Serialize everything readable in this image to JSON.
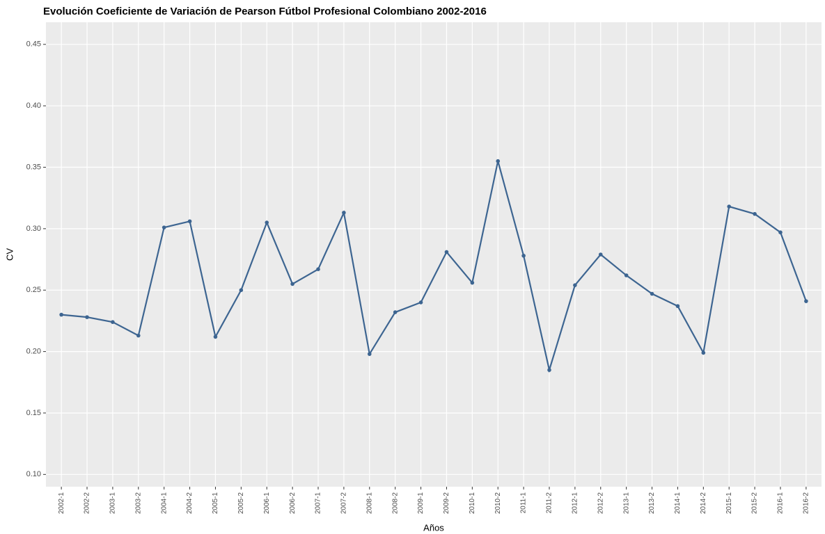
{
  "chart_data": {
    "type": "line",
    "title": "Evolución Coeficiente de Variación de Pearson Fútbol Profesional Colombiano 2002-2016",
    "x_label": "Años",
    "y_label": "CV",
    "categories": [
      "2002-1",
      "2002-2",
      "2003-1",
      "2003-2",
      "2004-1",
      "2004-2",
      "2005-1",
      "2005-2",
      "2006-1",
      "2006-2",
      "2007-1",
      "2007-2",
      "2008-1",
      "2008-2",
      "2009-1",
      "2009-2",
      "2010-1",
      "2010-2",
      "2011-1",
      "2011-2",
      "2012-1",
      "2012-2",
      "2013-1",
      "2013-2",
      "2014-1",
      "2014-2",
      "2015-1",
      "2015-2",
      "2016-1",
      "2016-2"
    ],
    "series": [
      {
        "name": "CV",
        "color": "#3d6591",
        "values": [
          0.23,
          0.228,
          0.224,
          0.213,
          0.301,
          0.306,
          0.212,
          0.25,
          0.305,
          0.255,
          0.267,
          0.313,
          0.198,
          0.232,
          0.24,
          0.281,
          0.256,
          0.355,
          0.278,
          0.185,
          0.254,
          0.279,
          0.262,
          0.247,
          0.237,
          0.199,
          0.318,
          0.312,
          0.297,
          0.241
        ]
      }
    ],
    "ylim": [
      0.09,
      0.468
    ],
    "yticks": [
      {
        "value": 0.1,
        "label": "0.10"
      },
      {
        "value": 0.15,
        "label": "0.15"
      },
      {
        "value": 0.2,
        "label": "0.20"
      },
      {
        "value": 0.25,
        "label": "0.25"
      },
      {
        "value": 0.3,
        "label": "0.30"
      },
      {
        "value": 0.35,
        "label": "0.35"
      },
      {
        "value": 0.4,
        "label": "0.40"
      },
      {
        "value": 0.45,
        "label": "0.45"
      }
    ],
    "grid": true
  }
}
